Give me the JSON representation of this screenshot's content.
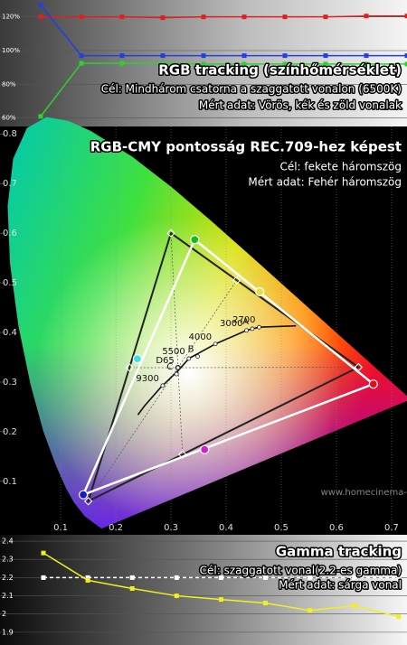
{
  "chart_data": [
    {
      "type": "line",
      "title": "RGB tracking (színhőmérséklet)",
      "target_text": "Cél: Mindhárom csatorna a szaggatott vonalon (6500K)",
      "measured_text": "Mért adat: Vörös, kék és zöld vonalak",
      "categories": [
        null,
        null,
        null,
        null,
        null,
        null,
        null,
        null,
        null,
        null
      ],
      "ylim": [
        55,
        130
      ],
      "yticks": [
        {
          "value": 60,
          "label": "60%"
        },
        {
          "value": 80,
          "label": "80%"
        },
        {
          "value": 100,
          "label": "100%"
        },
        {
          "value": 120,
          "label": "120%"
        }
      ],
      "grid": true,
      "series": [
        {
          "color": "#e02020",
          "values": [
            120,
            120,
            120,
            119.5,
            120,
            120,
            120,
            120,
            120.5,
            120.5
          ]
        },
        {
          "color": "#2040e0",
          "values": [
            127,
            97,
            97,
            97,
            97,
            97,
            97,
            97,
            97,
            97
          ]
        },
        {
          "color": "#30d030",
          "values": [
            61,
            92.5,
            92.5,
            92.5,
            92,
            92,
            92,
            92,
            92,
            92
          ]
        }
      ]
    },
    {
      "type": "cie",
      "title": "RGB-CMY pontosság REC.709-hez képest",
      "target_text": "Cél: fekete háromszög",
      "measured_text": "Mért adat: Fehér háromszög",
      "watermark": "www.homecinema-",
      "xlim": [
        -0.01,
        0.728
      ],
      "ylim": [
        -0.004,
        0.815
      ],
      "xticks": [
        0.1,
        0.2,
        0.3,
        0.4,
        0.5,
        0.6,
        0.7
      ],
      "yticks": [
        0.1,
        0.2,
        0.3,
        0.4,
        0.5,
        0.6,
        0.7,
        0.8
      ],
      "grid": true,
      "spectral_locus": {
        "x": [
          0.1741,
          0.144,
          0.1241,
          0.1096,
          0.0913,
          0.0687,
          0.0454,
          0.0235,
          0.0082,
          0.0039,
          0.0139,
          0.0389,
          0.0743,
          0.1142,
          0.1547,
          0.2296,
          0.3016,
          0.3731,
          0.4441,
          0.5125,
          0.5752,
          0.627,
          0.6915,
          0.7347
        ],
        "y": [
          0.005,
          0.0297,
          0.0578,
          0.0868,
          0.1327,
          0.2007,
          0.295,
          0.4127,
          0.5384,
          0.6548,
          0.7502,
          0.812,
          0.8338,
          0.8262,
          0.8059,
          0.7543,
          0.6923,
          0.6245,
          0.5547,
          0.4866,
          0.4242,
          0.3725,
          0.3083,
          0.2653
        ]
      },
      "target_primaries": {
        "x": [
          0.64,
          0.3,
          0.15
        ],
        "y": [
          0.33,
          0.6,
          0.06
        ]
      },
      "measured_primaries": {
        "x": [
          0.667,
          0.343,
          0.141
        ],
        "y": [
          0.296,
          0.587,
          0.073
        ],
        "colors": [
          "#e01010",
          "#10c010",
          "#1020c0"
        ]
      },
      "target_secondaries": {
        "x": [
          0.419,
          0.225,
          0.321
        ],
        "y": [
          0.505,
          0.329,
          0.154
        ]
      },
      "measured_secondaries": {
        "x": [
          0.461,
          0.239,
          0.361
        ],
        "y": [
          0.482,
          0.347,
          0.164
        ],
        "colors": [
          "#e8e040",
          "#40e0e0",
          "#d020d0"
        ]
      },
      "white_point": {
        "x": 0.3127,
        "y": 0.329
      },
      "planckian_locus": {
        "x": [
          0.24,
          0.252,
          0.2807,
          0.3135,
          0.3324,
          0.3805,
          0.4369,
          0.4599,
          0.5267
        ],
        "y": [
          0.234,
          0.252,
          0.2884,
          0.3237,
          0.3474,
          0.3768,
          0.4041,
          0.4106,
          0.4133
        ]
      },
      "locus_labels": [
        {
          "text": "3000",
          "x": 0.4369,
          "y": 0.4041
        },
        {
          "text": "2700",
          "x": 0.4599,
          "y": 0.4106
        },
        {
          "text": "4000",
          "x": 0.3805,
          "y": 0.3768
        },
        {
          "text": "5500",
          "x": 0.3324,
          "y": 0.3474
        },
        {
          "text": "D65",
          "x": 0.3127,
          "y": 0.329
        },
        {
          "text": "9300",
          "x": 0.285,
          "y": 0.293
        },
        {
          "text": "A",
          "x": 0.4476,
          "y": 0.4074
        },
        {
          "text": "B",
          "x": 0.3484,
          "y": 0.3516
        },
        {
          "text": "C",
          "x": 0.3101,
          "y": 0.3162
        }
      ]
    },
    {
      "type": "line",
      "title": "Gamma tracking",
      "target_text": "Cél: szaggatott vonal(2.2-es gamma)",
      "measured_text": "Mért adat: sárga vonal",
      "categories": [
        null,
        null,
        null,
        null,
        null,
        null,
        null,
        null,
        null
      ],
      "ylim": [
        1.83,
        2.435
      ],
      "yticks": [
        1.9,
        2,
        2.1,
        2.2,
        2.3,
        2.4
      ],
      "grid": true,
      "series": [
        {
          "color": "#ffffff",
          "dashed": true,
          "values": [
            2.2,
            2.2,
            2.2,
            2.2,
            2.2,
            2.2,
            2.2,
            2.2,
            2.2
          ]
        },
        {
          "color": "#f0f020",
          "values": [
            2.335,
            2.185,
            2.14,
            2.1,
            2.08,
            2.06,
            2.02,
            2.045,
            1.985
          ]
        }
      ]
    }
  ]
}
